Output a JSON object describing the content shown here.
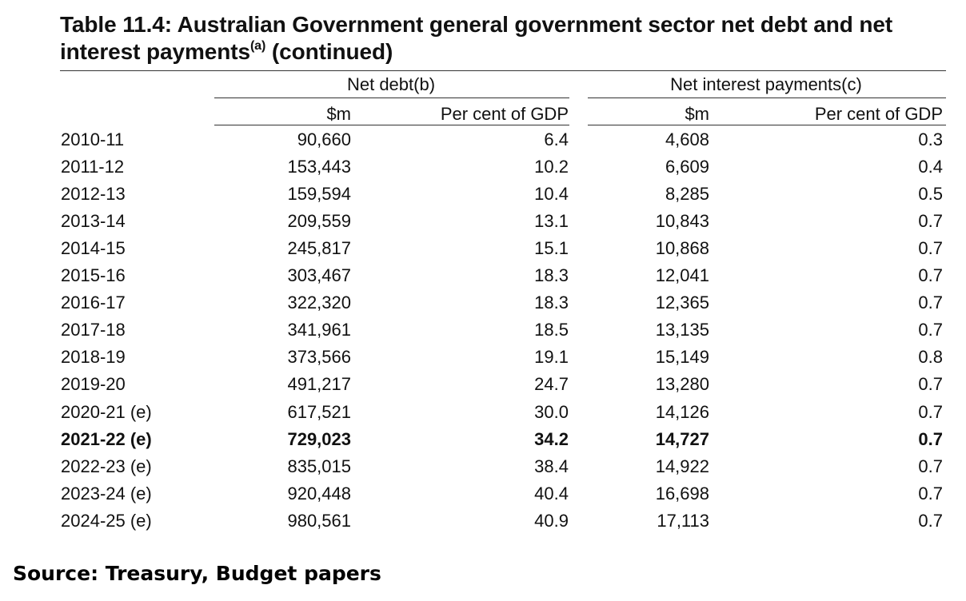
{
  "title": {
    "main": "Table 11.4: Australian Government general government sector net debt and net interest payments",
    "superscript": "(a)",
    "suffix": " (continued)"
  },
  "groups": {
    "net_debt": "Net debt(b)",
    "net_interest": "Net interest payments(c)"
  },
  "subheaders": {
    "debt_dollars": "$m",
    "debt_pct": "Per cent of GDP",
    "interest_dollars": "$m",
    "interest_pct": "Per cent of GDP"
  },
  "rows": [
    {
      "year": "2010-11",
      "debt_m": "90,660",
      "debt_pct": "6.4",
      "interest_m": "4,608",
      "interest_pct": "0.3",
      "bold": false
    },
    {
      "year": "2011-12",
      "debt_m": "153,443",
      "debt_pct": "10.2",
      "interest_m": "6,609",
      "interest_pct": "0.4",
      "bold": false
    },
    {
      "year": "2012-13",
      "debt_m": "159,594",
      "debt_pct": "10.4",
      "interest_m": "8,285",
      "interest_pct": "0.5",
      "bold": false
    },
    {
      "year": "2013-14",
      "debt_m": "209,559",
      "debt_pct": "13.1",
      "interest_m": "10,843",
      "interest_pct": "0.7",
      "bold": false
    },
    {
      "year": "2014-15",
      "debt_m": "245,817",
      "debt_pct": "15.1",
      "interest_m": "10,868",
      "interest_pct": "0.7",
      "bold": false
    },
    {
      "year": "2015-16",
      "debt_m": "303,467",
      "debt_pct": "18.3",
      "interest_m": "12,041",
      "interest_pct": "0.7",
      "bold": false
    },
    {
      "year": "2016-17",
      "debt_m": "322,320",
      "debt_pct": "18.3",
      "interest_m": "12,365",
      "interest_pct": "0.7",
      "bold": false
    },
    {
      "year": "2017-18",
      "debt_m": "341,961",
      "debt_pct": "18.5",
      "interest_m": "13,135",
      "interest_pct": "0.7",
      "bold": false
    },
    {
      "year": "2018-19",
      "debt_m": "373,566",
      "debt_pct": "19.1",
      "interest_m": "15,149",
      "interest_pct": "0.8",
      "bold": false
    },
    {
      "year": "2019-20",
      "debt_m": "491,217",
      "debt_pct": "24.7",
      "interest_m": "13,280",
      "interest_pct": "0.7",
      "bold": false
    },
    {
      "year": "2020-21 (e)",
      "debt_m": "617,521",
      "debt_pct": "30.0",
      "interest_m": "14,126",
      "interest_pct": "0.7",
      "bold": false
    },
    {
      "year": "2021-22 (e)",
      "debt_m": "729,023",
      "debt_pct": "34.2",
      "interest_m": "14,727",
      "interest_pct": "0.7",
      "bold": true
    },
    {
      "year": "2022-23 (e)",
      "debt_m": "835,015",
      "debt_pct": "38.4",
      "interest_m": "14,922",
      "interest_pct": "0.7",
      "bold": false
    },
    {
      "year": "2023-24 (e)",
      "debt_m": "920,448",
      "debt_pct": "40.4",
      "interest_m": "16,698",
      "interest_pct": "0.7",
      "bold": false
    },
    {
      "year": "2024-25 (e)",
      "debt_m": "980,561",
      "debt_pct": "40.9",
      "interest_m": "17,113",
      "interest_pct": "0.7",
      "bold": false
    }
  ],
  "source": "Source: Treasury, Budget papers"
}
